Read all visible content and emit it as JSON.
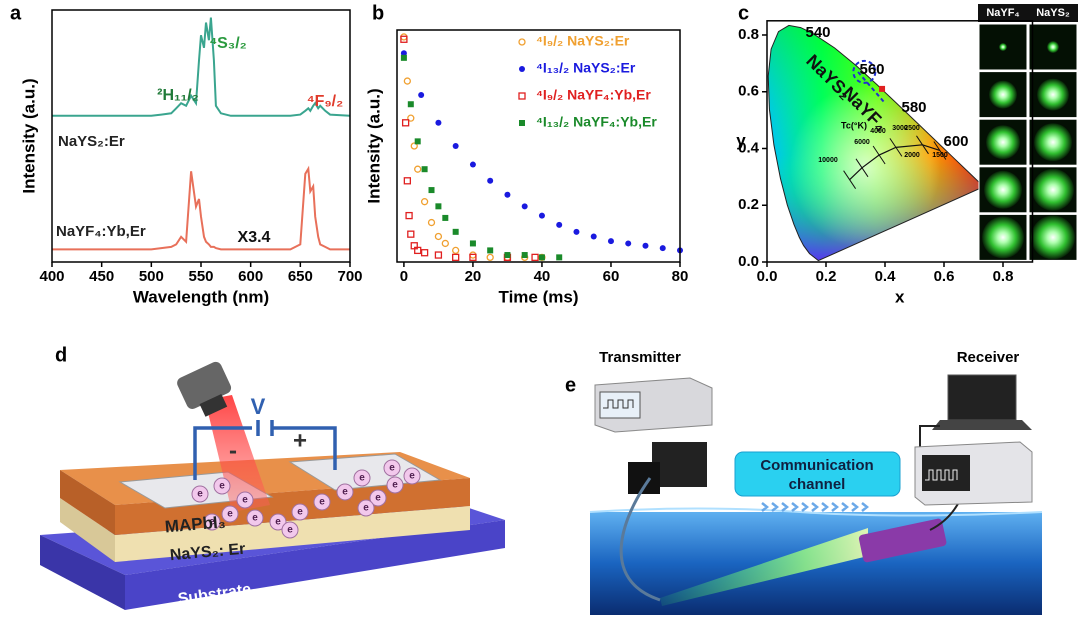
{
  "chart_data": [
    {
      "type": "line",
      "panel": "a",
      "xlabel": "Wavelength (nm)",
      "ylabel": "Intensity (a.u.)",
      "x": [
        400,
        420,
        440,
        460,
        480,
        500,
        510,
        520,
        525,
        530,
        535,
        540,
        545,
        548,
        550,
        553,
        555,
        558,
        560,
        563,
        565,
        570,
        580,
        600,
        620,
        640,
        650,
        655,
        658,
        660,
        663,
        665,
        668,
        670,
        675,
        680,
        700
      ],
      "xlim": [
        400,
        700
      ],
      "xticks": [
        400,
        450,
        500,
        550,
        600,
        650,
        700
      ],
      "ylim": [
        0,
        1
      ],
      "series": [
        {
          "name": "NaYS₂:Er",
          "color": "#3aa58f",
          "values": [
            0.58,
            0.58,
            0.58,
            0.58,
            0.58,
            0.58,
            0.585,
            0.59,
            0.61,
            0.63,
            0.62,
            0.66,
            0.63,
            0.8,
            0.9,
            0.85,
            0.95,
            0.88,
            0.97,
            0.8,
            0.62,
            0.59,
            0.58,
            0.58,
            0.58,
            0.58,
            0.585,
            0.6,
            0.61,
            0.6,
            0.62,
            0.63,
            0.61,
            0.62,
            0.6,
            0.585,
            0.58
          ]
        },
        {
          "name": "NaYF₄:Yb,Er",
          "color": "#e8705a",
          "values": [
            0.05,
            0.05,
            0.05,
            0.05,
            0.05,
            0.05,
            0.055,
            0.06,
            0.07,
            0.1,
            0.08,
            0.36,
            0.22,
            0.25,
            0.18,
            0.1,
            0.08,
            0.07,
            0.06,
            0.06,
            0.055,
            0.05,
            0.05,
            0.05,
            0.05,
            0.05,
            0.07,
            0.35,
            0.37,
            0.28,
            0.3,
            0.18,
            0.1,
            0.07,
            0.06,
            0.05,
            0.05
          ]
        }
      ],
      "annotations": [
        {
          "text": "²H₁₁/₂",
          "color": "#1f7a38"
        },
        {
          "text": "⁴S₃/₂",
          "color": "#2a9a3e"
        },
        {
          "text": "⁴F₉/₂",
          "color": "#e03a2a"
        },
        {
          "text": "X3.4",
          "color": "#111111"
        }
      ]
    },
    {
      "type": "scatter",
      "panel": "b",
      "xlabel": "Time (ms)",
      "ylabel": "Intensity (a.u.)",
      "xlim": [
        -2,
        80
      ],
      "xticks": [
        0,
        20,
        40,
        60,
        80
      ],
      "ylim": [
        0,
        1
      ],
      "legend": "upper right",
      "series": [
        {
          "name": "⁴I₉/₂ NaYS₂:Er",
          "color": "#f0a030",
          "marker": "circle-open",
          "x": [
            0,
            1,
            2,
            3,
            4,
            6,
            8,
            10,
            12,
            15,
            20,
            25,
            30,
            35,
            40
          ],
          "values": [
            0.97,
            0.78,
            0.62,
            0.5,
            0.4,
            0.26,
            0.17,
            0.11,
            0.08,
            0.05,
            0.03,
            0.02,
            0.02,
            0.02,
            0.02
          ]
        },
        {
          "name": "⁴I₁₃/₂ NaYS₂:Er",
          "color": "#1a1adf",
          "marker": "circle",
          "x": [
            0,
            5,
            10,
            15,
            20,
            25,
            30,
            35,
            40,
            45,
            50,
            55,
            60,
            65,
            70,
            75,
            80
          ],
          "values": [
            0.9,
            0.72,
            0.6,
            0.5,
            0.42,
            0.35,
            0.29,
            0.24,
            0.2,
            0.16,
            0.13,
            0.11,
            0.09,
            0.08,
            0.07,
            0.06,
            0.05
          ]
        },
        {
          "name": "⁴I₉/₂ NaYF₄:Yb,Er",
          "color": "#e02020",
          "marker": "square-open",
          "x": [
            0,
            0.5,
            1,
            1.5,
            2,
            3,
            4,
            6,
            10,
            15,
            20,
            30,
            38
          ],
          "values": [
            0.96,
            0.6,
            0.35,
            0.2,
            0.12,
            0.07,
            0.05,
            0.04,
            0.03,
            0.02,
            0.02,
            0.02,
            0.02
          ]
        },
        {
          "name": "⁴I₁₃/₂ NaYF₄:Yb,Er",
          "color": "#1a8a2a",
          "marker": "square",
          "x": [
            0,
            2,
            4,
            6,
            8,
            10,
            12,
            15,
            20,
            25,
            30,
            35,
            40,
            45
          ],
          "values": [
            0.88,
            0.68,
            0.52,
            0.4,
            0.31,
            0.24,
            0.19,
            0.13,
            0.08,
            0.05,
            0.03,
            0.03,
            0.02,
            0.02
          ]
        }
      ]
    },
    {
      "type": "scatter",
      "panel": "c",
      "xlabel": "x",
      "ylabel": "y",
      "xlim": [
        0,
        0.9
      ],
      "xticks": [
        {
          "value": 0,
          "label": "0.0"
        },
        0.2,
        0.4,
        0.6,
        0.8
      ],
      "ylim": [
        0,
        0.85
      ],
      "yticks": [
        {
          "value": 0,
          "label": "0.0"
        },
        0.2,
        0.4,
        0.6,
        0.8
      ],
      "series": [
        {
          "name": "NaYS₂",
          "color": "#2030d0",
          "marker": "circle-dashed",
          "x": [
            0.33
          ],
          "values": [
            0.67
          ]
        },
        {
          "name": "NaYF₄",
          "color": "#e02020",
          "marker": "square",
          "x": [
            0.39
          ],
          "values": [
            0.61
          ]
        }
      ],
      "locus_labels": [
        540,
        560,
        580,
        600
      ],
      "cct_label": "Tc(°K)",
      "cct_labels": [
        10000,
        6000,
        4000,
        3000,
        2500,
        2000,
        1500
      ],
      "image_headers": [
        "NaYF₄",
        "NaYS₂"
      ]
    }
  ],
  "panel_d": {
    "label": "d",
    "voltage": "V",
    "minus": "-",
    "plus": "+",
    "electron": "e",
    "layers": [
      "MAPbI₃",
      "NaYS₂: Er",
      "Substrate"
    ]
  },
  "panel_e": {
    "label": "e",
    "transmitter": "Transmitter",
    "receiver": "Receiver",
    "channel": [
      "Communication",
      "channel"
    ]
  }
}
